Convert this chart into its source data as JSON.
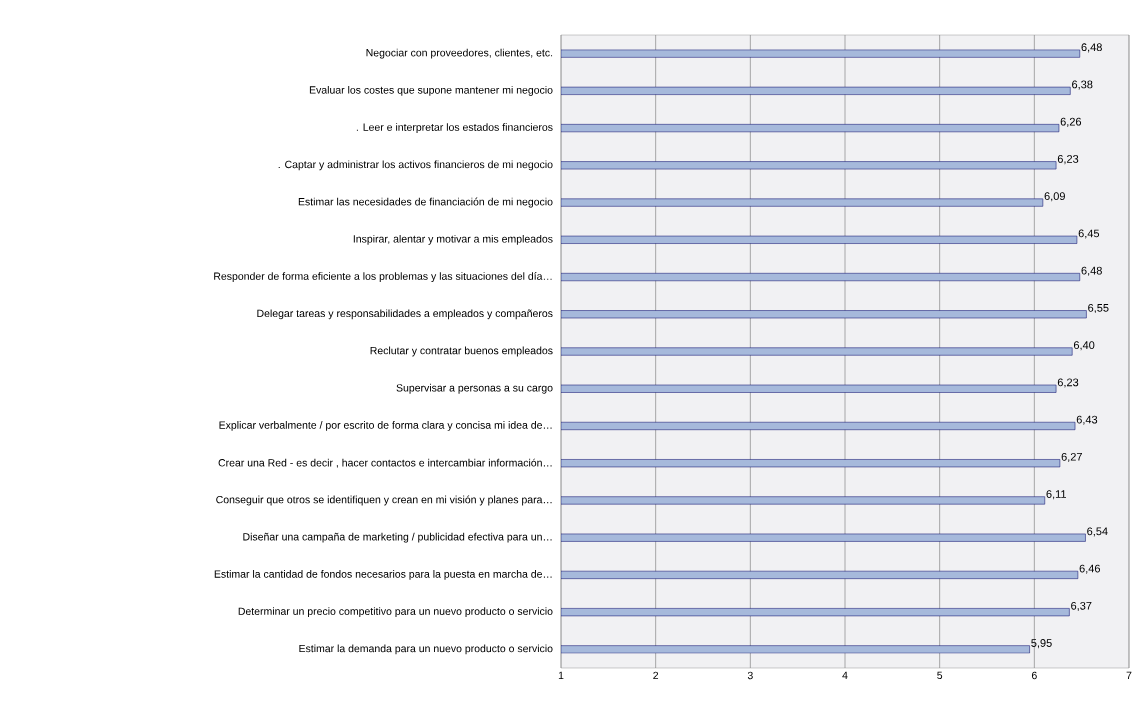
{
  "chart_data": {
    "type": "bar",
    "orientation": "horizontal",
    "categories": [
      "Negociar con proveedores, clientes, etc.",
      "Evaluar los costes que supone mantener mi negocio",
      ". Leer e interpretar los estados financieros",
      ". Captar y administrar los activos financieros de mi negocio",
      "Estimar las necesidades de financiación de mi negocio",
      "Inspirar, alentar y motivar a mis empleados",
      "Responder de forma eficiente a los problemas y las situaciones del día…",
      "Delegar tareas y responsabilidades a empleados y compañeros",
      "Reclutar y contratar buenos empleados",
      "Supervisar a personas a su cargo",
      "Explicar verbalmente / por escrito de forma clara y concisa mi idea de…",
      "Crear una Red - es decir , hacer contactos e intercambiar información…",
      "Conseguir que otros se identifiquen y crean en mi visión y planes para…",
      "Diseñar una campaña de marketing / publicidad efectiva para un…",
      "Estimar la cantidad de fondos necesarios para la puesta en marcha de…",
      "Determinar un precio competitivo para un nuevo producto o servicio",
      "Estimar la demanda para un nuevo producto o servicio"
    ],
    "values": [
      6.48,
      6.38,
      6.26,
      6.23,
      6.09,
      6.45,
      6.48,
      6.55,
      6.4,
      6.23,
      6.43,
      6.27,
      6.11,
      6.54,
      6.46,
      6.37,
      5.95
    ],
    "value_labels": [
      "6,48",
      "6,38",
      "6,26",
      "6,23",
      "6,09",
      "6,45",
      "6,48",
      "6,55",
      "6,40",
      "6,23",
      "6,43",
      "6,27",
      "6,11",
      "6,54",
      "6,46",
      "6,37",
      "5,95"
    ],
    "color": "#a6b9db",
    "xlim": [
      1,
      7
    ],
    "xticks": [
      1,
      2,
      3,
      4,
      5,
      6,
      7
    ],
    "grid": "x"
  }
}
